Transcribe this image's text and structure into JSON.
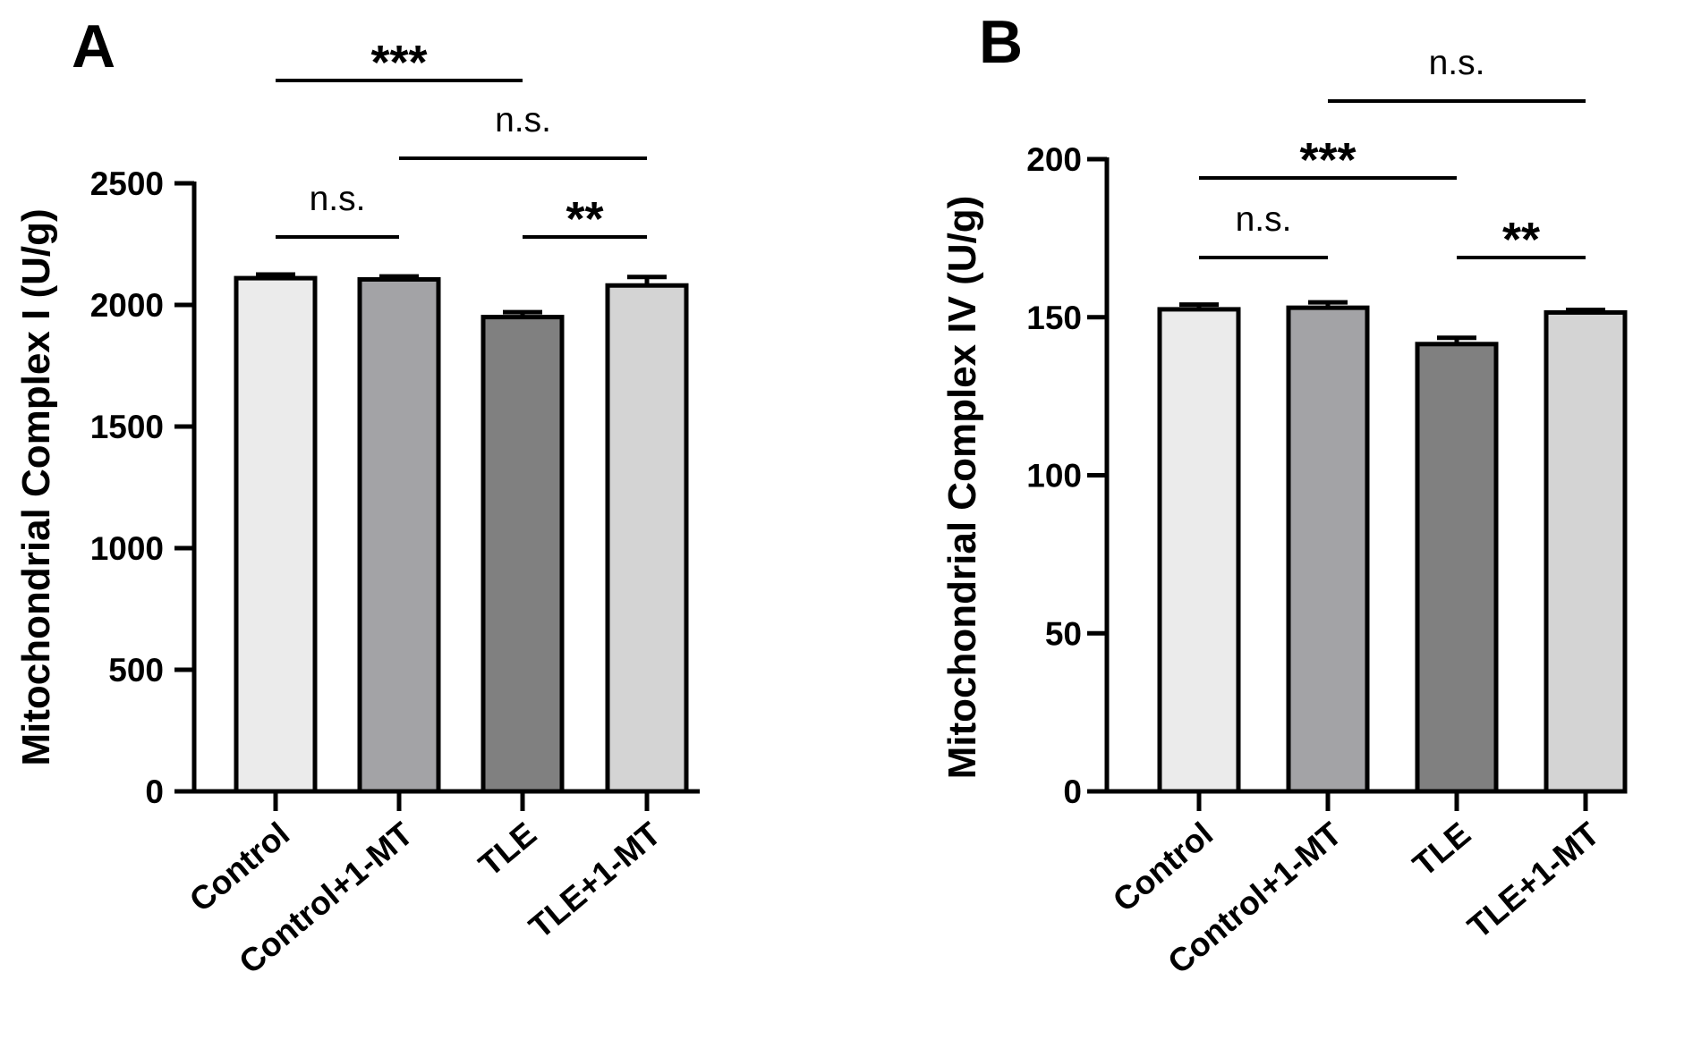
{
  "chart_data": [
    {
      "panel": "A",
      "type": "bar",
      "ylabel": "Mitochondrial Complex I (U/g)",
      "xlabel": "",
      "ylim": [
        0,
        2500
      ],
      "yticks": [
        0,
        500,
        1000,
        1500,
        2000,
        2500
      ],
      "categories": [
        "Control",
        "Control+1-MT",
        "TLE",
        "TLE+1-MT"
      ],
      "values": [
        2110,
        2105,
        1950,
        2080
      ],
      "errors": [
        15,
        12,
        20,
        35
      ],
      "colors": [
        "#ebebeb",
        "#a3a3a6",
        "#808080",
        "#d4d4d4"
      ],
      "significance": [
        {
          "from": 0,
          "to": 1,
          "label": "n.s."
        },
        {
          "from": 2,
          "to": 3,
          "label": "**"
        },
        {
          "from": 1,
          "to": 3,
          "label": "n.s."
        },
        {
          "from": 0,
          "to": 2,
          "label": "***"
        }
      ]
    },
    {
      "panel": "B",
      "type": "bar",
      "ylabel": "Mitochondrial Complex IV (U/g)",
      "xlabel": "",
      "ylim": [
        0,
        200
      ],
      "yticks": [
        0,
        50,
        100,
        150,
        200
      ],
      "categories": [
        "Control",
        "Control+1-MT",
        "TLE",
        "TLE+1-MT"
      ],
      "values": [
        152.5,
        153,
        141.5,
        151.5
      ],
      "errors": [
        1.5,
        1.7,
        2.0,
        0.8
      ],
      "colors": [
        "#ebebeb",
        "#a3a3a6",
        "#808080",
        "#d4d4d4"
      ],
      "significance": [
        {
          "from": 0,
          "to": 1,
          "label": "n.s."
        },
        {
          "from": 2,
          "to": 3,
          "label": "**"
        },
        {
          "from": 0,
          "to": 2,
          "label": "***"
        },
        {
          "from": 1,
          "to": 3,
          "label": "n.s."
        }
      ]
    }
  ]
}
